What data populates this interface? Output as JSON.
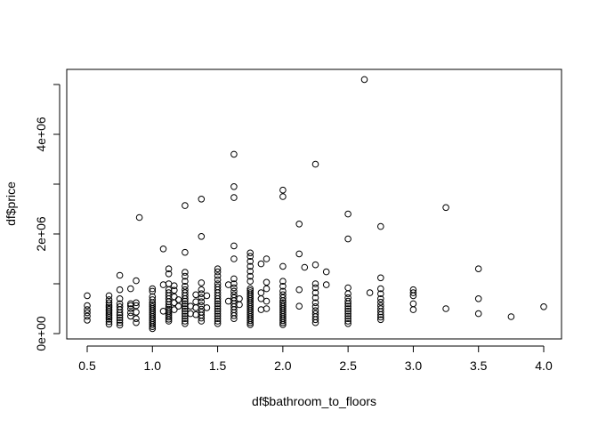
{
  "chart_data": {
    "type": "scatter",
    "title": "",
    "xlabel": "df$bathroom_to_floors",
    "ylabel": "df$price",
    "xlim": [
      0.4,
      4.1
    ],
    "ylim": [
      0,
      5250000
    ],
    "x_ticks": [
      0.5,
      1.0,
      1.5,
      2.0,
      2.5,
      3.0,
      3.5,
      4.0
    ],
    "x_tick_labels": [
      "0.5",
      "1.0",
      "1.5",
      "2.0",
      "2.5",
      "3.0",
      "3.5",
      "4.0"
    ],
    "y_ticks": [
      0,
      2000000,
      4000000
    ],
    "y_tick_labels": [
      "0e+00",
      "2e+06",
      "4e+06"
    ],
    "grid": false,
    "legend": "none",
    "marker": "open-circle",
    "points": [
      [
        0.5,
        270000
      ],
      [
        0.5,
        350000
      ],
      [
        0.5,
        420000
      ],
      [
        0.5,
        480000
      ],
      [
        0.5,
        560000
      ],
      [
        0.5,
        760000
      ],
      [
        0.667,
        190000
      ],
      [
        0.667,
        240000
      ],
      [
        0.667,
        290000
      ],
      [
        0.667,
        330000
      ],
      [
        0.667,
        370000
      ],
      [
        0.667,
        410000
      ],
      [
        0.667,
        450000
      ],
      [
        0.667,
        490000
      ],
      [
        0.667,
        530000
      ],
      [
        0.667,
        570000
      ],
      [
        0.667,
        620000
      ],
      [
        0.667,
        680000
      ],
      [
        0.667,
        760000
      ],
      [
        0.75,
        170000
      ],
      [
        0.75,
        220000
      ],
      [
        0.75,
        270000
      ],
      [
        0.75,
        320000
      ],
      [
        0.75,
        370000
      ],
      [
        0.75,
        420000
      ],
      [
        0.75,
        480000
      ],
      [
        0.75,
        540000
      ],
      [
        0.75,
        600000
      ],
      [
        0.75,
        700000
      ],
      [
        0.75,
        880000
      ],
      [
        0.75,
        1170000
      ],
      [
        0.833,
        350000
      ],
      [
        0.833,
        420000
      ],
      [
        0.833,
        500000
      ],
      [
        0.833,
        560000
      ],
      [
        0.833,
        600000
      ],
      [
        0.833,
        900000
      ],
      [
        0.875,
        220000
      ],
      [
        0.875,
        300000
      ],
      [
        0.875,
        430000
      ],
      [
        0.875,
        560000
      ],
      [
        0.875,
        620000
      ],
      [
        0.875,
        1060000
      ],
      [
        0.9,
        2330000
      ],
      [
        1.0,
        100000
      ],
      [
        1.0,
        140000
      ],
      [
        1.0,
        180000
      ],
      [
        1.0,
        220000
      ],
      [
        1.0,
        260000
      ],
      [
        1.0,
        300000
      ],
      [
        1.0,
        340000
      ],
      [
        1.0,
        380000
      ],
      [
        1.0,
        420000
      ],
      [
        1.0,
        460000
      ],
      [
        1.0,
        500000
      ],
      [
        1.0,
        540000
      ],
      [
        1.0,
        580000
      ],
      [
        1.0,
        620000
      ],
      [
        1.0,
        680000
      ],
      [
        1.0,
        740000
      ],
      [
        1.0,
        850000
      ],
      [
        1.0,
        900000
      ],
      [
        1.083,
        1700000
      ],
      [
        1.083,
        980000
      ],
      [
        1.083,
        450000
      ],
      [
        1.125,
        250000
      ],
      [
        1.125,
        290000
      ],
      [
        1.125,
        330000
      ],
      [
        1.125,
        370000
      ],
      [
        1.125,
        410000
      ],
      [
        1.125,
        450000
      ],
      [
        1.125,
        490000
      ],
      [
        1.125,
        530000
      ],
      [
        1.125,
        580000
      ],
      [
        1.125,
        640000
      ],
      [
        1.125,
        700000
      ],
      [
        1.125,
        760000
      ],
      [
        1.125,
        820000
      ],
      [
        1.125,
        880000
      ],
      [
        1.125,
        1000000
      ],
      [
        1.125,
        1200000
      ],
      [
        1.125,
        1300000
      ],
      [
        1.167,
        480000
      ],
      [
        1.167,
        620000
      ],
      [
        1.167,
        740000
      ],
      [
        1.167,
        870000
      ],
      [
        1.167,
        960000
      ],
      [
        1.2,
        550000
      ],
      [
        1.2,
        680000
      ],
      [
        1.25,
        200000
      ],
      [
        1.25,
        250000
      ],
      [
        1.25,
        300000
      ],
      [
        1.25,
        350000
      ],
      [
        1.25,
        400000
      ],
      [
        1.25,
        450000
      ],
      [
        1.25,
        500000
      ],
      [
        1.25,
        550000
      ],
      [
        1.25,
        600000
      ],
      [
        1.25,
        650000
      ],
      [
        1.25,
        700000
      ],
      [
        1.25,
        760000
      ],
      [
        1.25,
        820000
      ],
      [
        1.25,
        880000
      ],
      [
        1.25,
        950000
      ],
      [
        1.25,
        1050000
      ],
      [
        1.25,
        1150000
      ],
      [
        1.25,
        1230000
      ],
      [
        1.25,
        1630000
      ],
      [
        1.25,
        2570000
      ],
      [
        1.292,
        400000
      ],
      [
        1.292,
        550000
      ],
      [
        1.333,
        380000
      ],
      [
        1.333,
        520000
      ],
      [
        1.333,
        640000
      ],
      [
        1.333,
        780000
      ],
      [
        1.375,
        250000
      ],
      [
        1.375,
        310000
      ],
      [
        1.375,
        370000
      ],
      [
        1.375,
        430000
      ],
      [
        1.375,
        490000
      ],
      [
        1.375,
        560000
      ],
      [
        1.375,
        640000
      ],
      [
        1.375,
        720000
      ],
      [
        1.375,
        800000
      ],
      [
        1.375,
        880000
      ],
      [
        1.375,
        1020000
      ],
      [
        1.375,
        1950000
      ],
      [
        1.375,
        2700000
      ],
      [
        1.417,
        520000
      ],
      [
        1.417,
        760000
      ],
      [
        1.5,
        200000
      ],
      [
        1.5,
        250000
      ],
      [
        1.5,
        300000
      ],
      [
        1.5,
        350000
      ],
      [
        1.5,
        400000
      ],
      [
        1.5,
        450000
      ],
      [
        1.5,
        500000
      ],
      [
        1.5,
        550000
      ],
      [
        1.5,
        600000
      ],
      [
        1.5,
        650000
      ],
      [
        1.5,
        700000
      ],
      [
        1.5,
        760000
      ],
      [
        1.5,
        820000
      ],
      [
        1.5,
        880000
      ],
      [
        1.5,
        940000
      ],
      [
        1.5,
        1000000
      ],
      [
        1.5,
        1080000
      ],
      [
        1.5,
        1160000
      ],
      [
        1.5,
        1240000
      ],
      [
        1.5,
        1300000
      ],
      [
        1.583,
        650000
      ],
      [
        1.583,
        980000
      ],
      [
        1.625,
        300000
      ],
      [
        1.625,
        360000
      ],
      [
        1.625,
        420000
      ],
      [
        1.625,
        480000
      ],
      [
        1.625,
        540000
      ],
      [
        1.625,
        600000
      ],
      [
        1.625,
        660000
      ],
      [
        1.625,
        720000
      ],
      [
        1.625,
        780000
      ],
      [
        1.625,
        850000
      ],
      [
        1.625,
        920000
      ],
      [
        1.625,
        1000000
      ],
      [
        1.625,
        1100000
      ],
      [
        1.625,
        1500000
      ],
      [
        1.625,
        1760000
      ],
      [
        1.625,
        2730000
      ],
      [
        1.625,
        2950000
      ],
      [
        1.625,
        3600000
      ],
      [
        1.667,
        580000
      ],
      [
        1.667,
        700000
      ],
      [
        1.75,
        180000
      ],
      [
        1.75,
        220000
      ],
      [
        1.75,
        260000
      ],
      [
        1.75,
        300000
      ],
      [
        1.75,
        340000
      ],
      [
        1.75,
        380000
      ],
      [
        1.75,
        420000
      ],
      [
        1.75,
        460000
      ],
      [
        1.75,
        500000
      ],
      [
        1.75,
        540000
      ],
      [
        1.75,
        580000
      ],
      [
        1.75,
        620000
      ],
      [
        1.75,
        660000
      ],
      [
        1.75,
        700000
      ],
      [
        1.75,
        740000
      ],
      [
        1.75,
        780000
      ],
      [
        1.75,
        820000
      ],
      [
        1.75,
        860000
      ],
      [
        1.75,
        900000
      ],
      [
        1.75,
        1050000
      ],
      [
        1.75,
        1150000
      ],
      [
        1.75,
        1250000
      ],
      [
        1.75,
        1350000
      ],
      [
        1.75,
        1450000
      ],
      [
        1.75,
        1550000
      ],
      [
        1.75,
        1620000
      ],
      [
        1.833,
        480000
      ],
      [
        1.833,
        700000
      ],
      [
        1.833,
        820000
      ],
      [
        1.833,
        1400000
      ],
      [
        1.875,
        500000
      ],
      [
        1.875,
        650000
      ],
      [
        1.875,
        900000
      ],
      [
        1.875,
        1030000
      ],
      [
        1.875,
        1500000
      ],
      [
        2.0,
        180000
      ],
      [
        2.0,
        220000
      ],
      [
        2.0,
        260000
      ],
      [
        2.0,
        300000
      ],
      [
        2.0,
        340000
      ],
      [
        2.0,
        380000
      ],
      [
        2.0,
        420000
      ],
      [
        2.0,
        460000
      ],
      [
        2.0,
        500000
      ],
      [
        2.0,
        540000
      ],
      [
        2.0,
        580000
      ],
      [
        2.0,
        620000
      ],
      [
        2.0,
        660000
      ],
      [
        2.0,
        720000
      ],
      [
        2.0,
        780000
      ],
      [
        2.0,
        850000
      ],
      [
        2.0,
        950000
      ],
      [
        2.0,
        1050000
      ],
      [
        2.0,
        1350000
      ],
      [
        2.0,
        2750000
      ],
      [
        2.0,
        2880000
      ],
      [
        2.125,
        550000
      ],
      [
        2.125,
        880000
      ],
      [
        2.125,
        1600000
      ],
      [
        2.125,
        2200000
      ],
      [
        2.167,
        1330000
      ],
      [
        2.25,
        220000
      ],
      [
        2.25,
        280000
      ],
      [
        2.25,
        340000
      ],
      [
        2.25,
        400000
      ],
      [
        2.25,
        460000
      ],
      [
        2.25,
        540000
      ],
      [
        2.25,
        620000
      ],
      [
        2.25,
        720000
      ],
      [
        2.25,
        820000
      ],
      [
        2.25,
        920000
      ],
      [
        2.25,
        1000000
      ],
      [
        2.25,
        1380000
      ],
      [
        2.25,
        3400000
      ],
      [
        2.333,
        980000
      ],
      [
        2.333,
        1240000
      ],
      [
        2.5,
        200000
      ],
      [
        2.5,
        250000
      ],
      [
        2.5,
        300000
      ],
      [
        2.5,
        350000
      ],
      [
        2.5,
        400000
      ],
      [
        2.5,
        450000
      ],
      [
        2.5,
        500000
      ],
      [
        2.5,
        550000
      ],
      [
        2.5,
        600000
      ],
      [
        2.5,
        650000
      ],
      [
        2.5,
        720000
      ],
      [
        2.5,
        800000
      ],
      [
        2.5,
        920000
      ],
      [
        2.5,
        1900000
      ],
      [
        2.5,
        2400000
      ],
      [
        2.625,
        5100000
      ],
      [
        2.667,
        820000
      ],
      [
        2.75,
        280000
      ],
      [
        2.75,
        330000
      ],
      [
        2.75,
        380000
      ],
      [
        2.75,
        440000
      ],
      [
        2.75,
        500000
      ],
      [
        2.75,
        560000
      ],
      [
        2.75,
        630000
      ],
      [
        2.75,
        700000
      ],
      [
        2.75,
        800000
      ],
      [
        2.75,
        900000
      ],
      [
        2.75,
        1120000
      ],
      [
        2.75,
        2150000
      ],
      [
        3.0,
        480000
      ],
      [
        3.0,
        600000
      ],
      [
        3.0,
        760000
      ],
      [
        3.0,
        820000
      ],
      [
        3.0,
        880000
      ],
      [
        3.25,
        500000
      ],
      [
        3.25,
        2530000
      ],
      [
        3.5,
        400000
      ],
      [
        3.5,
        700000
      ],
      [
        3.5,
        1300000
      ],
      [
        3.75,
        340000
      ],
      [
        4.0,
        540000
      ]
    ]
  }
}
